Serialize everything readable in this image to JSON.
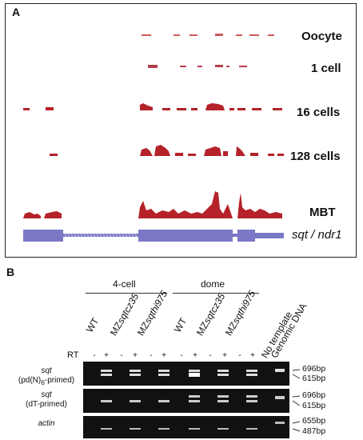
{
  "panel_a": {
    "label": "A",
    "tracks": [
      {
        "label": "Oocyte"
      },
      {
        "label": "1 cell"
      },
      {
        "label": "16 cells"
      },
      {
        "label": "128 cells"
      },
      {
        "label": "MBT"
      }
    ],
    "gene_label": "sqt / ndr1"
  },
  "panel_b": {
    "label": "B",
    "groups": [
      {
        "label": "4-cell"
      },
      {
        "label": "dome"
      }
    ],
    "lanes_4cell": [
      {
        "prefix": "WT",
        "italic": ""
      },
      {
        "prefix": "MZ",
        "italic": "sqt",
        "suffix": "cz35"
      },
      {
        "prefix": "MZ",
        "italic": "sqt",
        "suffix": "hi975"
      }
    ],
    "lanes_dome": [
      {
        "prefix": "WT",
        "italic": ""
      },
      {
        "prefix": "MZ",
        "italic": "sqt",
        "suffix": "cz35"
      },
      {
        "prefix": "MZ",
        "italic": "sqt",
        "suffix": "hi975"
      }
    ],
    "extra_lanes": [
      "No template",
      "Genomic DNA"
    ],
    "rt_label": "RT",
    "rt_signs": [
      "-",
      "+",
      "-",
      "+",
      "-",
      "+",
      "-",
      "+",
      "-",
      "+",
      "-",
      "+"
    ],
    "gels": [
      {
        "caption_gene": "sqt",
        "caption_line2": "(pd(N)",
        "caption_sub": "6",
        "caption_tail": "-primed)",
        "sizes": [
          "696bp",
          "615bp"
        ]
      },
      {
        "caption_gene": "sqt",
        "caption_line2": "(dT-primed)",
        "caption_sub": "",
        "caption_tail": "",
        "sizes": [
          "696bp",
          "615bp"
        ]
      },
      {
        "caption_gene": "actin",
        "caption_line2": "",
        "caption_sub": "",
        "caption_tail": "",
        "sizes": [
          "655bp",
          "487bp"
        ]
      }
    ]
  },
  "colors": {
    "coverage": "#b5222a",
    "gene_model": "#7b78c8",
    "gel_bg": "#111111"
  }
}
